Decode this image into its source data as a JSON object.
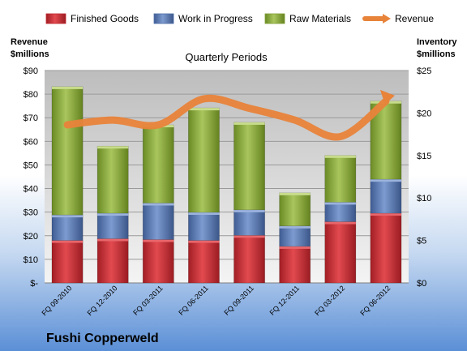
{
  "chart_data": {
    "type": "bar",
    "title": "Quarterly Periods",
    "company": "Fushi Copperweld",
    "left_axis_label": [
      "Revenue",
      "$millions"
    ],
    "right_axis_label": [
      "Inventory",
      "$millions"
    ],
    "legend_position": "top",
    "grid": true,
    "categories": [
      "FQ 09-2010",
      "FQ 12-2010",
      "FQ 03-2011",
      "FQ 06-2011",
      "FQ 09-2011",
      "FQ 12-2011",
      "FQ 03-2012",
      "FQ 06-2012"
    ],
    "left_ylim": [
      0,
      90
    ],
    "left_ticks": [
      "$-",
      "$10",
      "$20",
      "$30",
      "$40",
      "$50",
      "$60",
      "$70",
      "$80",
      "$90"
    ],
    "right_ylim": [
      0,
      25
    ],
    "right_ticks": [
      "$0",
      "$5",
      "$10",
      "$15",
      "$20",
      "$25"
    ],
    "series": [
      {
        "name": "Finished Goods",
        "axis": "right",
        "stack": true,
        "color": "#c0272d",
        "values": [
          5.0,
          5.2,
          5.1,
          5.0,
          5.6,
          4.3,
          7.2,
          8.2
        ]
      },
      {
        "name": "Work in Progress",
        "axis": "right",
        "stack": true,
        "color": "#4f6fa8",
        "values": [
          3.0,
          3.0,
          4.3,
          3.3,
          3.0,
          2.4,
          2.3,
          4.0
        ]
      },
      {
        "name": "Raw Materials",
        "axis": "right",
        "stack": true,
        "color": "#7f9f35",
        "values": [
          15.1,
          7.9,
          9.2,
          12.3,
          10.3,
          3.9,
          5.5,
          9.2
        ]
      },
      {
        "name": "Revenue",
        "axis": "left",
        "type": "line",
        "color": "#e8833a",
        "values": [
          67,
          69,
          67,
          78,
          74,
          69,
          62,
          77
        ]
      }
    ]
  }
}
